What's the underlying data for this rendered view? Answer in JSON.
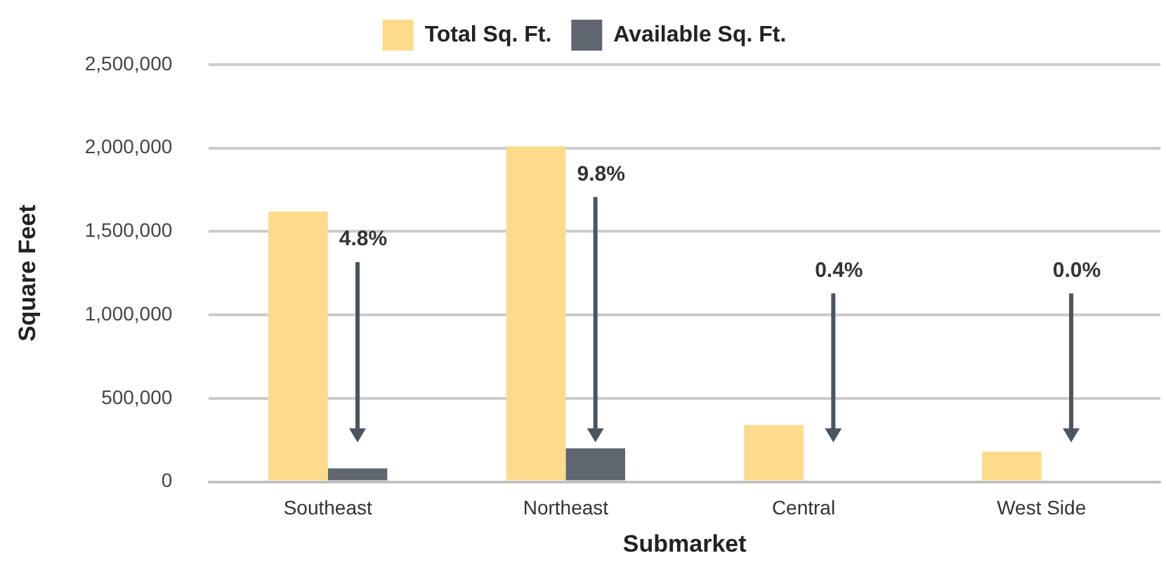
{
  "chart_data": {
    "type": "bar",
    "xlabel": "Submarket",
    "ylabel": "Square Feet",
    "categories": [
      "Southeast",
      "Northeast",
      "Central",
      "West Side"
    ],
    "series": [
      {
        "name": "Total Sq. Ft.",
        "color": "#fedb8c",
        "values": [
          1620000,
          2010000,
          340000,
          180000
        ]
      },
      {
        "name": "Available Sq. Ft.",
        "color": "#5f6670",
        "values": [
          80000,
          200000,
          0,
          0
        ]
      }
    ],
    "ylim": [
      0,
      2500000
    ],
    "yticks": [
      {
        "value": 0,
        "label": "0"
      },
      {
        "value": 500000,
        "label": "500,000"
      },
      {
        "value": 1000000,
        "label": "1,000,000"
      },
      {
        "value": 1500000,
        "label": "1,500,000"
      },
      {
        "value": 2000000,
        "label": "2,000,000"
      },
      {
        "value": 2500000,
        "label": "2,500,000"
      }
    ],
    "grid": "y",
    "legend": "top",
    "annotations": [
      "4.8%",
      "9.8%",
      "0.4%",
      "0.0%"
    ]
  }
}
